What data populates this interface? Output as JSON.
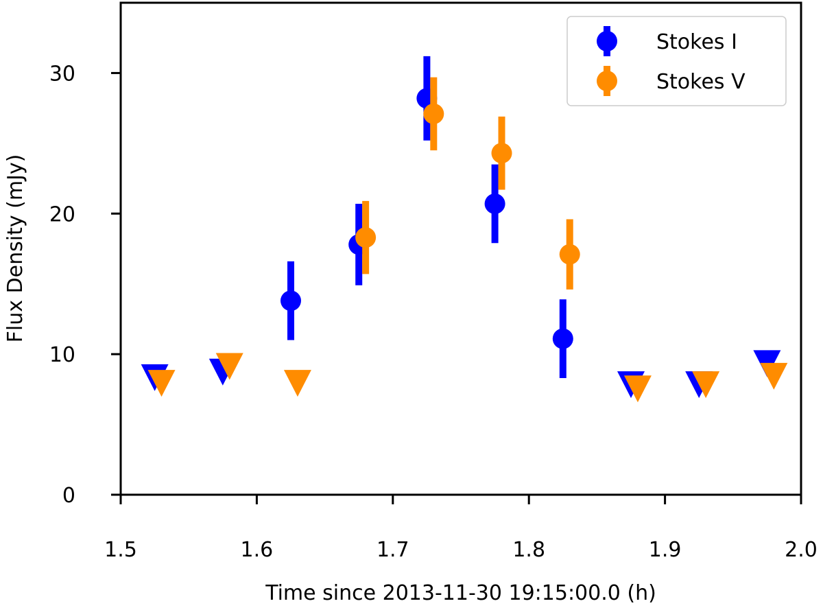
{
  "chart_data": {
    "type": "scatter",
    "title": "",
    "xlabel": "Time since 2013-11-30 19:15:00.0 (h)",
    "ylabel": "Flux Density (mJy)",
    "xlim": [
      1.5,
      2.0
    ],
    "ylim": [
      0,
      35
    ],
    "xticks": [
      "1.5",
      "1.6",
      "1.7",
      "1.8",
      "1.9",
      "2.0"
    ],
    "xtick_values": [
      1.5,
      1.6,
      1.7,
      1.8,
      1.9,
      2.0
    ],
    "yticks": [
      "0",
      "10",
      "20",
      "30"
    ],
    "ytick_values": [
      0,
      10,
      20,
      30
    ],
    "grid": false,
    "legend_position": "top-right",
    "series": [
      {
        "name": "Stokes I",
        "color": "#0000ff",
        "detections": [
          {
            "x": 1.625,
            "y": 13.8,
            "err": 2.8
          },
          {
            "x": 1.675,
            "y": 17.8,
            "err": 2.9
          },
          {
            "x": 1.725,
            "y": 28.2,
            "err": 3.0
          },
          {
            "x": 1.775,
            "y": 20.7,
            "err": 2.8
          },
          {
            "x": 1.825,
            "y": 11.1,
            "err": 2.8
          }
        ],
        "upper_limits": [
          {
            "x": 1.525,
            "y": 8.4
          },
          {
            "x": 1.575,
            "y": 8.8
          },
          {
            "x": 1.875,
            "y": 7.9
          },
          {
            "x": 1.925,
            "y": 7.9
          },
          {
            "x": 1.975,
            "y": 9.4
          }
        ]
      },
      {
        "name": "Stokes V",
        "color": "#ff8c00",
        "detections": [
          {
            "x": 1.68,
            "y": 18.3,
            "err": 2.6
          },
          {
            "x": 1.73,
            "y": 27.1,
            "err": 2.6
          },
          {
            "x": 1.78,
            "y": 24.3,
            "err": 2.6
          },
          {
            "x": 1.83,
            "y": 17.1,
            "err": 2.5
          }
        ],
        "upper_limits": [
          {
            "x": 1.53,
            "y": 8.0
          },
          {
            "x": 1.58,
            "y": 9.2
          },
          {
            "x": 1.63,
            "y": 8.0
          },
          {
            "x": 1.88,
            "y": 7.6
          },
          {
            "x": 1.93,
            "y": 7.9
          },
          {
            "x": 1.98,
            "y": 8.5
          }
        ]
      }
    ]
  }
}
